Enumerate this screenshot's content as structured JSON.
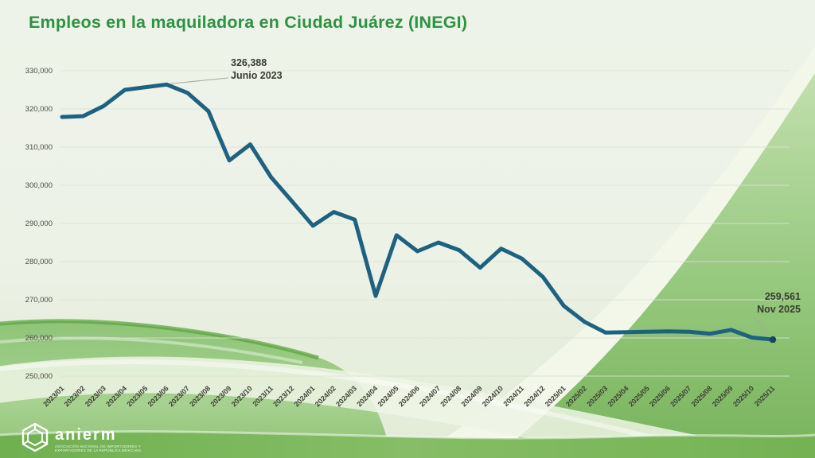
{
  "title": "Empleos en la maquiladora en Ciudad Juárez (INEGI)",
  "chart_data": {
    "type": "line",
    "series_name": "Empleos en la maquiladora en Ciudad Juárez",
    "x": [
      "2023/01",
      "2023/02",
      "2023/03",
      "2023/04",
      "2023/05",
      "2023/06",
      "2023/07",
      "2023/08",
      "2023/09",
      "2023/10",
      "2023/11",
      "2023/12",
      "2024/01",
      "2024/02",
      "2024/03",
      "2024/04",
      "2024/05",
      "2024/06",
      "2024/07",
      "2024/08",
      "2024/09",
      "2024/10",
      "2024/11",
      "2024/12",
      "2025/01",
      "2025/02",
      "2025/03",
      "2025/04",
      "2025/05",
      "2025/06",
      "2025/07",
      "2025/08",
      "2025/09",
      "2025/10",
      "2025/11"
    ],
    "values": [
      317900,
      318100,
      320800,
      325000,
      325700,
      326388,
      324200,
      319400,
      306500,
      310700,
      302100,
      295800,
      289400,
      293000,
      291000,
      271000,
      286900,
      282700,
      285000,
      283000,
      278400,
      283400,
      280800,
      276000,
      268400,
      264200,
      261400,
      261500,
      261600,
      261700,
      261600,
      261100,
      262100,
      260100,
      259561
    ],
    "ylim": [
      250000,
      330000
    ],
    "ytick_step": 10000,
    "grid": true,
    "legend": "none",
    "line_color": "#1e6180",
    "end_dot_color": "#16455f",
    "annotations": [
      {
        "index": 5,
        "value": "326,388",
        "label": "Junio 2023"
      },
      {
        "index": 34,
        "value": "259,561",
        "label": "Nov 2025"
      }
    ]
  },
  "logo": {
    "word": "anierm",
    "tagline": "ASOCIACIÓN NACIONAL DE IMPORTADORES Y EXPORTADORES DE LA REPÚBLICA MEXICANA"
  },
  "colors": {
    "title_green": "#2e9242",
    "line_blue": "#1e6180",
    "axis_text": "#45453c",
    "background_light": "#eef3e9",
    "swoosh_green_mid": "#8cc476",
    "swoosh_green_dark": "#5da23f"
  }
}
